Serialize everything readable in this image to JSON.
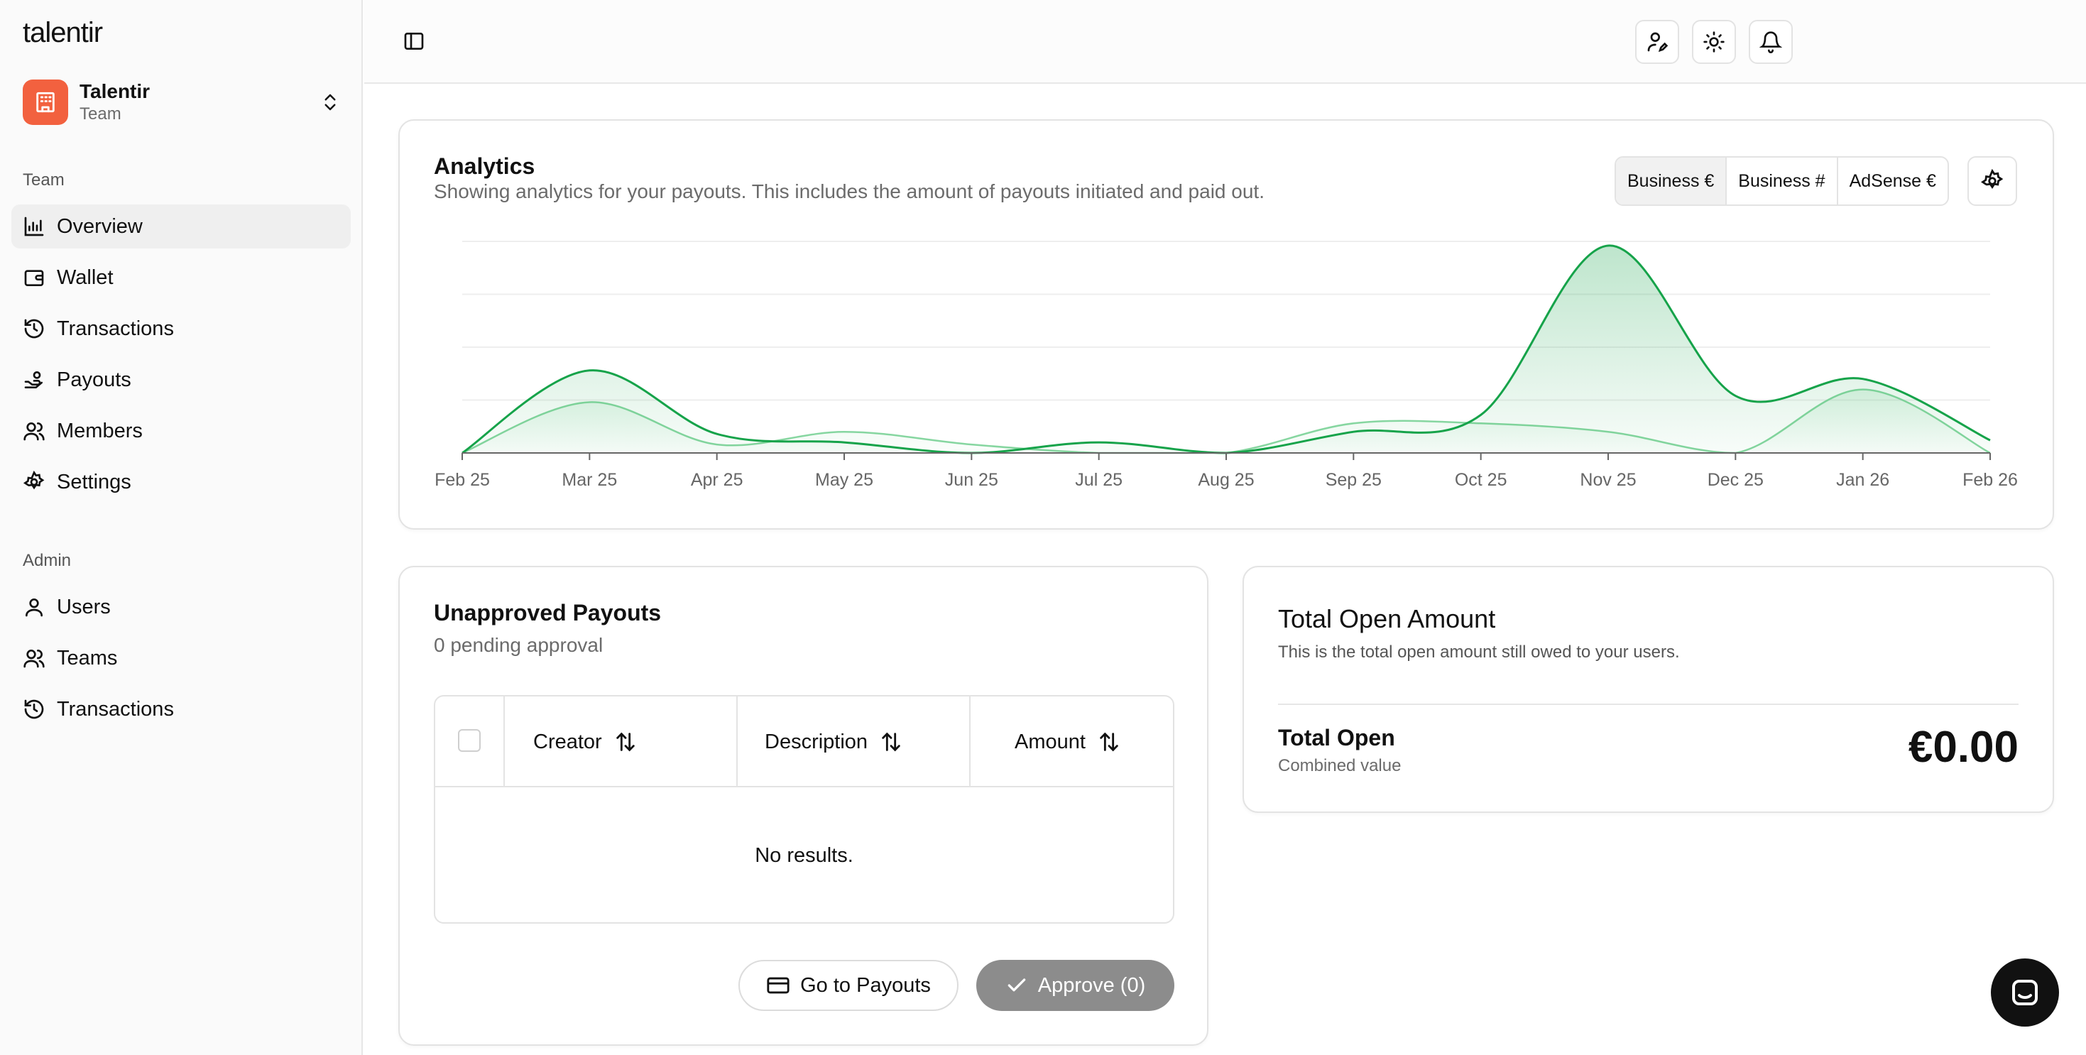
{
  "app": {
    "logo": "talentir"
  },
  "team_switcher": {
    "name": "Talentir",
    "subtitle": "Team"
  },
  "sidebar": {
    "team_label": "Team",
    "team_items": [
      {
        "label": "Overview",
        "icon": "chart-icon",
        "active": true
      },
      {
        "label": "Wallet",
        "icon": "wallet-icon"
      },
      {
        "label": "Transactions",
        "icon": "history-icon"
      },
      {
        "label": "Payouts",
        "icon": "hand-coins-icon"
      },
      {
        "label": "Members",
        "icon": "users-icon"
      },
      {
        "label": "Settings",
        "icon": "gear-icon"
      }
    ],
    "admin_label": "Admin",
    "admin_items": [
      {
        "label": "Users",
        "icon": "user-icon"
      },
      {
        "label": "Teams",
        "icon": "users-icon"
      },
      {
        "label": "Transactions",
        "icon": "history-icon"
      }
    ]
  },
  "analytics": {
    "title": "Analytics",
    "description": "Showing analytics for your payouts. This includes the amount of payouts initiated and paid out.",
    "segments": [
      "Business €",
      "Business #",
      "AdSense €"
    ],
    "active_segment": "Business €"
  },
  "chart_data": {
    "type": "area",
    "categories": [
      "Feb 25",
      "Mar 25",
      "Apr 25",
      "May 25",
      "Jun 25",
      "Jul 25",
      "Aug 25",
      "Sep 25",
      "Oct 25",
      "Nov 25",
      "Dec 25",
      "Jan 26",
      "Feb 26"
    ],
    "series": [
      {
        "values": [
          0,
          39,
          9,
          5,
          0,
          5,
          0,
          10,
          18,
          98,
          27,
          35,
          6
        ],
        "color": "#16a34a"
      },
      {
        "values": [
          0,
          24,
          4,
          10,
          4,
          0,
          0,
          14,
          14,
          10,
          0,
          30,
          0
        ],
        "color": "#86d6a0"
      }
    ],
    "ylim": [
      0,
      100
    ],
    "grid": true
  },
  "unapproved": {
    "title": "Unapproved Payouts",
    "subtitle": "0 pending approval",
    "columns": [
      "Creator",
      "Description",
      "Amount"
    ],
    "empty_text": "No results.",
    "go_button": "Go to Payouts",
    "approve_button": "Approve (0)"
  },
  "total": {
    "title": "Total Open Amount",
    "description": "This is the total open amount still owed to your users.",
    "label": "Total Open",
    "sublabel": "Combined value",
    "amount": "€0.00"
  }
}
